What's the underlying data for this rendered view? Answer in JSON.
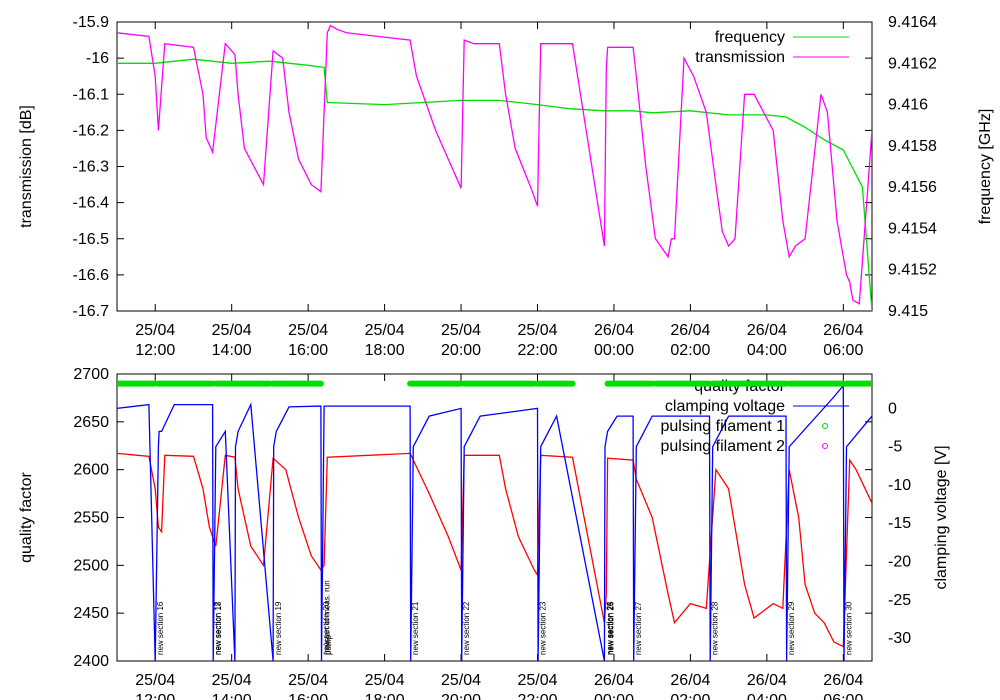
{
  "chart_data": [
    {
      "type": "line",
      "xlabel": "",
      "ylabel": "transmission [dB]",
      "y2label": "frequency [GHz]",
      "ylim": [
        -16.7,
        -15.9
      ],
      "y2lim": [
        9.415,
        9.4164
      ],
      "grid": false,
      "legend_position": "top-right",
      "xticks": [
        {
          "date": "25/04",
          "time": "12:00"
        },
        {
          "date": "25/04",
          "time": "14:00"
        },
        {
          "date": "25/04",
          "time": "16:00"
        },
        {
          "date": "25/04",
          "time": "18:00"
        },
        {
          "date": "25/04",
          "time": "20:00"
        },
        {
          "date": "25/04",
          "time": "22:00"
        },
        {
          "date": "26/04",
          "time": "00:00"
        },
        {
          "date": "26/04",
          "time": "02:00"
        },
        {
          "date": "26/04",
          "time": "04:00"
        },
        {
          "date": "26/04",
          "time": "06:00"
        }
      ],
      "yticks": [
        "-15.9",
        "-16",
        "-16.1",
        "-16.2",
        "-16.3",
        "-16.4",
        "-16.5",
        "-16.6",
        "-16.7"
      ],
      "y2ticks": [
        "9.4164",
        "9.4162",
        "9.416",
        "9.4158",
        "9.4156",
        "9.4154",
        "9.4152",
        "9.415"
      ],
      "series": [
        {
          "name": "frequency",
          "color": "#00dd00",
          "axis": "y2",
          "x": [
            "25/04 11:00",
            "25/04 12:00",
            "25/04 13:00",
            "25/04 14:00",
            "25/04 15:00",
            "25/04 16:00",
            "25/04 16:25",
            "25/04 16:30",
            "25/04 18:00",
            "25/04 19:00",
            "25/04 20:00",
            "25/04 21:00",
            "25/04 22:00",
            "25/04 22:50",
            "25/04 23:45",
            "26/04 00:30",
            "26/04 01:00",
            "26/04 02:00",
            "26/04 03:00",
            "26/04 04:00",
            "26/04 04:30",
            "26/04 05:00",
            "26/04 05:30",
            "26/04 06:00",
            "26/04 06:30",
            "26/04 06:45"
          ],
          "y": [
            9.4162,
            9.4162,
            9.41622,
            9.4162,
            9.41621,
            9.41619,
            9.41618,
            9.41601,
            9.416,
            9.41601,
            9.41602,
            9.41602,
            9.416,
            9.41598,
            9.41597,
            9.41597,
            9.41596,
            9.41597,
            9.41595,
            9.41595,
            9.41594,
            9.41589,
            9.41583,
            9.41578,
            9.4156,
            9.415
          ]
        },
        {
          "name": "transmission",
          "color": "#ff00ff",
          "axis": "y",
          "x": [
            "25/04 11:00",
            "25/04 11:50",
            "25/04 12:00",
            "25/04 12:05",
            "25/04 12:15",
            "25/04 13:00",
            "25/04 13:15",
            "25/04 13:20",
            "25/04 13:30",
            "25/04 13:50",
            "25/04 14:05",
            "25/04 14:10",
            "25/04 14:20",
            "25/04 14:50",
            "25/04 15:05",
            "25/04 15:20",
            "25/04 15:30",
            "25/04 15:45",
            "25/04 16:05",
            "25/04 16:20",
            "25/04 16:30",
            "25/04 16:35",
            "25/04 16:45",
            "25/04 17:00",
            "25/04 18:40",
            "25/04 18:50",
            "25/04 19:20",
            "25/04 19:40",
            "25/04 20:00",
            "25/04 20:05",
            "25/04 20:20",
            "25/04 21:00",
            "25/04 21:10",
            "25/04 21:25",
            "25/04 21:50",
            "25/04 22:00",
            "25/04 22:05",
            "25/04 22:20",
            "25/04 22:55",
            "25/04 23:45",
            "25/04 23:48",
            "25/04 23:50",
            "26/04 00:30",
            "26/04 00:35",
            "26/04 00:50",
            "26/04 01:05",
            "26/04 01:25",
            "26/04 01:30",
            "26/04 01:35",
            "26/04 01:50",
            "26/04 02:05",
            "26/04 02:25",
            "26/04 02:40",
            "26/04 02:50",
            "26/04 03:00",
            "26/04 03:10",
            "26/04 03:25",
            "26/04 03:40",
            "26/04 04:10",
            "26/04 04:25",
            "26/04 04:35",
            "26/04 04:45",
            "26/04 05:00",
            "26/04 05:25",
            "26/04 05:35",
            "26/04 05:50",
            "26/04 06:05",
            "26/04 06:10",
            "26/04 06:15",
            "26/04 06:25",
            "26/04 06:45"
          ],
          "y": [
            -15.93,
            -15.94,
            -16.05,
            -16.2,
            -15.96,
            -15.97,
            -16.1,
            -16.22,
            -16.26,
            -15.96,
            -15.99,
            -16.1,
            -16.25,
            -16.35,
            -15.98,
            -16.0,
            -16.15,
            -16.28,
            -16.35,
            -16.37,
            -15.93,
            -15.91,
            -15.92,
            -15.93,
            -15.95,
            -16.05,
            -16.2,
            -16.28,
            -16.36,
            -15.95,
            -15.96,
            -15.96,
            -16.1,
            -16.25,
            -16.36,
            -16.41,
            -15.96,
            -15.96,
            -15.96,
            -16.52,
            -16.03,
            -15.97,
            -15.97,
            -16.05,
            -16.3,
            -16.5,
            -16.55,
            -16.5,
            -16.5,
            -16.0,
            -16.05,
            -16.15,
            -16.35,
            -16.48,
            -16.52,
            -16.5,
            -16.1,
            -16.1,
            -16.2,
            -16.45,
            -16.55,
            -16.52,
            -16.5,
            -16.1,
            -16.15,
            -16.45,
            -16.6,
            -16.62,
            -16.67,
            -16.68,
            -16.2
          ]
        }
      ]
    },
    {
      "type": "line",
      "xlabel": "",
      "ylabel": "quality factor",
      "y2label": "clamping voltage [V]",
      "ylim": [
        2400,
        2700
      ],
      "y2lim": [
        -33,
        4.5
      ],
      "grid": false,
      "legend_position": "top-right",
      "xticks": [
        {
          "date": "25/04",
          "time": "12:00"
        },
        {
          "date": "25/04",
          "time": "14:00"
        },
        {
          "date": "25/04",
          "time": "16:00"
        },
        {
          "date": "25/04",
          "time": "18:00"
        },
        {
          "date": "25/04",
          "time": "20:00"
        },
        {
          "date": "25/04",
          "time": "22:00"
        },
        {
          "date": "26/04",
          "time": "00:00"
        },
        {
          "date": "26/04",
          "time": "02:00"
        },
        {
          "date": "26/04",
          "time": "04:00"
        },
        {
          "date": "26/04",
          "time": "06:00"
        }
      ],
      "yticks": [
        "2700",
        "2650",
        "2600",
        "2550",
        "2500",
        "2450",
        "2400"
      ],
      "y2ticks": [
        "0",
        "-5",
        "-10",
        "-15",
        "-20",
        "-25",
        "-30"
      ],
      "series": [
        {
          "name": "quality factor",
          "color": "#ff0000",
          "axis": "y",
          "x": [
            "25/04 11:00",
            "25/04 11:50",
            "25/04 12:00",
            "25/04 12:05",
            "25/04 12:10",
            "25/04 12:15",
            "25/04 13:00",
            "25/04 13:15",
            "25/04 13:25",
            "25/04 13:35",
            "25/04 13:50",
            "25/04 14:05",
            "25/04 14:10",
            "25/04 14:30",
            "25/04 14:50",
            "25/04 15:05",
            "25/04 15:25",
            "25/04 15:45",
            "25/04 16:05",
            "25/04 16:20",
            "25/04 16:25",
            "25/04 16:30",
            "25/04 18:40",
            "25/04 19:10",
            "25/04 19:40",
            "25/04 20:00",
            "25/04 20:05",
            "25/04 21:00",
            "25/04 21:10",
            "25/04 21:30",
            "25/04 21:55",
            "25/04 22:00",
            "25/04 22:05",
            "25/04 22:55",
            "25/04 23:45",
            "25/04 23:48",
            "25/04 23:50",
            "26/04 00:30",
            "26/04 00:35",
            "26/04 01:00",
            "26/04 01:25",
            "26/04 01:35",
            "26/04 02:00",
            "26/04 02:25",
            "26/04 02:40",
            "26/04 03:00",
            "26/04 03:25",
            "26/04 03:40",
            "26/04 04:10",
            "26/04 04:25",
            "26/04 04:35",
            "26/04 04:50",
            "26/04 05:00",
            "26/04 05:15",
            "26/04 05:30",
            "26/04 05:45",
            "26/04 06:00",
            "26/04 06:10",
            "26/04 06:20",
            "26/04 06:45"
          ],
          "y": [
            2617,
            2614,
            2580,
            2540,
            2535,
            2615,
            2614,
            2580,
            2540,
            2520,
            2615,
            2613,
            2580,
            2520,
            2500,
            2612,
            2600,
            2550,
            2510,
            2495,
            2500,
            2613,
            2617,
            2575,
            2530,
            2495,
            2615,
            2615,
            2580,
            2530,
            2495,
            2490,
            2615,
            2613,
            2440,
            2470,
            2612,
            2610,
            2590,
            2550,
            2470,
            2440,
            2460,
            2455,
            2600,
            2580,
            2480,
            2445,
            2460,
            2455,
            2600,
            2550,
            2480,
            2450,
            2440,
            2420,
            2415,
            2610,
            2600,
            2565
          ]
        },
        {
          "name": "clamping voltage",
          "color": "#0000ff",
          "axis": "y2",
          "x": [
            "25/04 11:00",
            "25/04 11:50",
            "25/04 12:00",
            "25/04 12:05",
            "25/04 12:06",
            "25/04 12:10",
            "25/04 12:30",
            "25/04 13:30",
            "25/04 13:31",
            "25/04 13:35",
            "25/04 13:50",
            "25/04 14:05",
            "25/04 14:06",
            "25/04 14:10",
            "25/04 14:30",
            "25/04 15:05",
            "25/04 15:06",
            "25/04 15:10",
            "25/04 15:30",
            "25/04 16:20",
            "25/04 16:21",
            "25/04 16:25",
            "25/04 18:40",
            "25/04 18:41",
            "25/04 18:45",
            "25/04 19:10",
            "25/04 20:00",
            "25/04 20:01",
            "25/04 20:05",
            "25/04 20:30",
            "25/04 22:00",
            "25/04 22:01",
            "25/04 22:05",
            "25/04 22:30",
            "25/04 23:45",
            "25/04 23:46",
            "25/04 23:50",
            "26/04 00:05",
            "26/04 00:30",
            "26/04 00:31",
            "26/04 00:35",
            "26/04 01:00",
            "26/04 02:30",
            "26/04 02:31",
            "26/04 02:35",
            "26/04 03:00",
            "26/04 04:30",
            "26/04 04:31",
            "26/04 04:35",
            "26/04 05:45",
            "26/04 06:00",
            "26/04 06:01",
            "26/04 06:05",
            "26/04 06:45"
          ],
          "y": [
            0,
            0.5,
            -33,
            -5,
            -3,
            -3,
            0.5,
            0.5,
            -33,
            -5,
            -3,
            -33,
            -5,
            -3,
            0.5,
            -33,
            -5,
            -3,
            0.2,
            0.3,
            -33,
            0.3,
            0.3,
            -33,
            -5,
            -1,
            0,
            -33,
            -5,
            -1,
            0,
            -33,
            -5,
            -1,
            -33,
            -5,
            -3,
            -1,
            -1,
            -33,
            -5,
            -1,
            -1,
            -33,
            -5,
            -1,
            -1,
            -33,
            -5,
            1.5,
            3,
            -33,
            -5,
            -1
          ]
        },
        {
          "name": "pulsing filament 1",
          "color": "#00dd00",
          "axis": "y",
          "marker": "circle",
          "x_ranges": [
            [
              "25/04 11:00",
              "25/04 12:00"
            ],
            [
              "25/04 12:05",
              "25/04 13:30"
            ],
            [
              "25/04 13:35",
              "25/04 15:00"
            ],
            [
              "25/04 15:05",
              "25/04 16:20"
            ],
            [
              "25/04 18:40",
              "25/04 20:00"
            ],
            [
              "25/04 20:05",
              "25/04 21:55"
            ],
            [
              "25/04 22:00",
              "25/04 22:55"
            ],
            [
              "25/04 23:50",
              "26/04 01:00"
            ],
            [
              "26/04 01:05",
              "26/04 02:30"
            ],
            [
              "26/04 02:35",
              "26/04 04:30"
            ],
            [
              "26/04 04:35",
              "26/04 06:00"
            ],
            [
              "26/04 06:05",
              "26/04 06:45"
            ]
          ],
          "y": 2690
        },
        {
          "name": "pulsing filament 2",
          "color": "#ff00ff",
          "axis": "y",
          "marker": "circle",
          "x_ranges": [],
          "y": 2690
        }
      ],
      "annotations": [
        {
          "x": "25/04 12:00",
          "text": "new section 16"
        },
        {
          "x": "25/04 13:30",
          "text": "new section 17"
        },
        {
          "x": "25/04 13:31",
          "text": "new section 18"
        },
        {
          "x": "25/04 15:05",
          "text": "new section 19"
        },
        {
          "x": "25/04 16:20",
          "text": "new section 20"
        },
        {
          "x": "25/04 16:21",
          "text": "(re)start of meas. run"
        },
        {
          "x": "25/04 16:23",
          "text": "pump"
        },
        {
          "x": "25/04 18:40",
          "text": "new section 21"
        },
        {
          "x": "25/04 20:00",
          "text": "new section 22"
        },
        {
          "x": "25/04 22:00",
          "text": "new section 23"
        },
        {
          "x": "25/04 23:45",
          "text": "new section 24"
        },
        {
          "x": "25/04 23:46",
          "text": "new section 25"
        },
        {
          "x": "25/04 23:47",
          "text": "new section 26"
        },
        {
          "x": "26/04 00:30",
          "text": "new section 27"
        },
        {
          "x": "26/04 02:30",
          "text": "new section 28"
        },
        {
          "x": "26/04 04:30",
          "text": "new section 29"
        },
        {
          "x": "26/04 06:00",
          "text": "new section 30"
        }
      ]
    }
  ]
}
